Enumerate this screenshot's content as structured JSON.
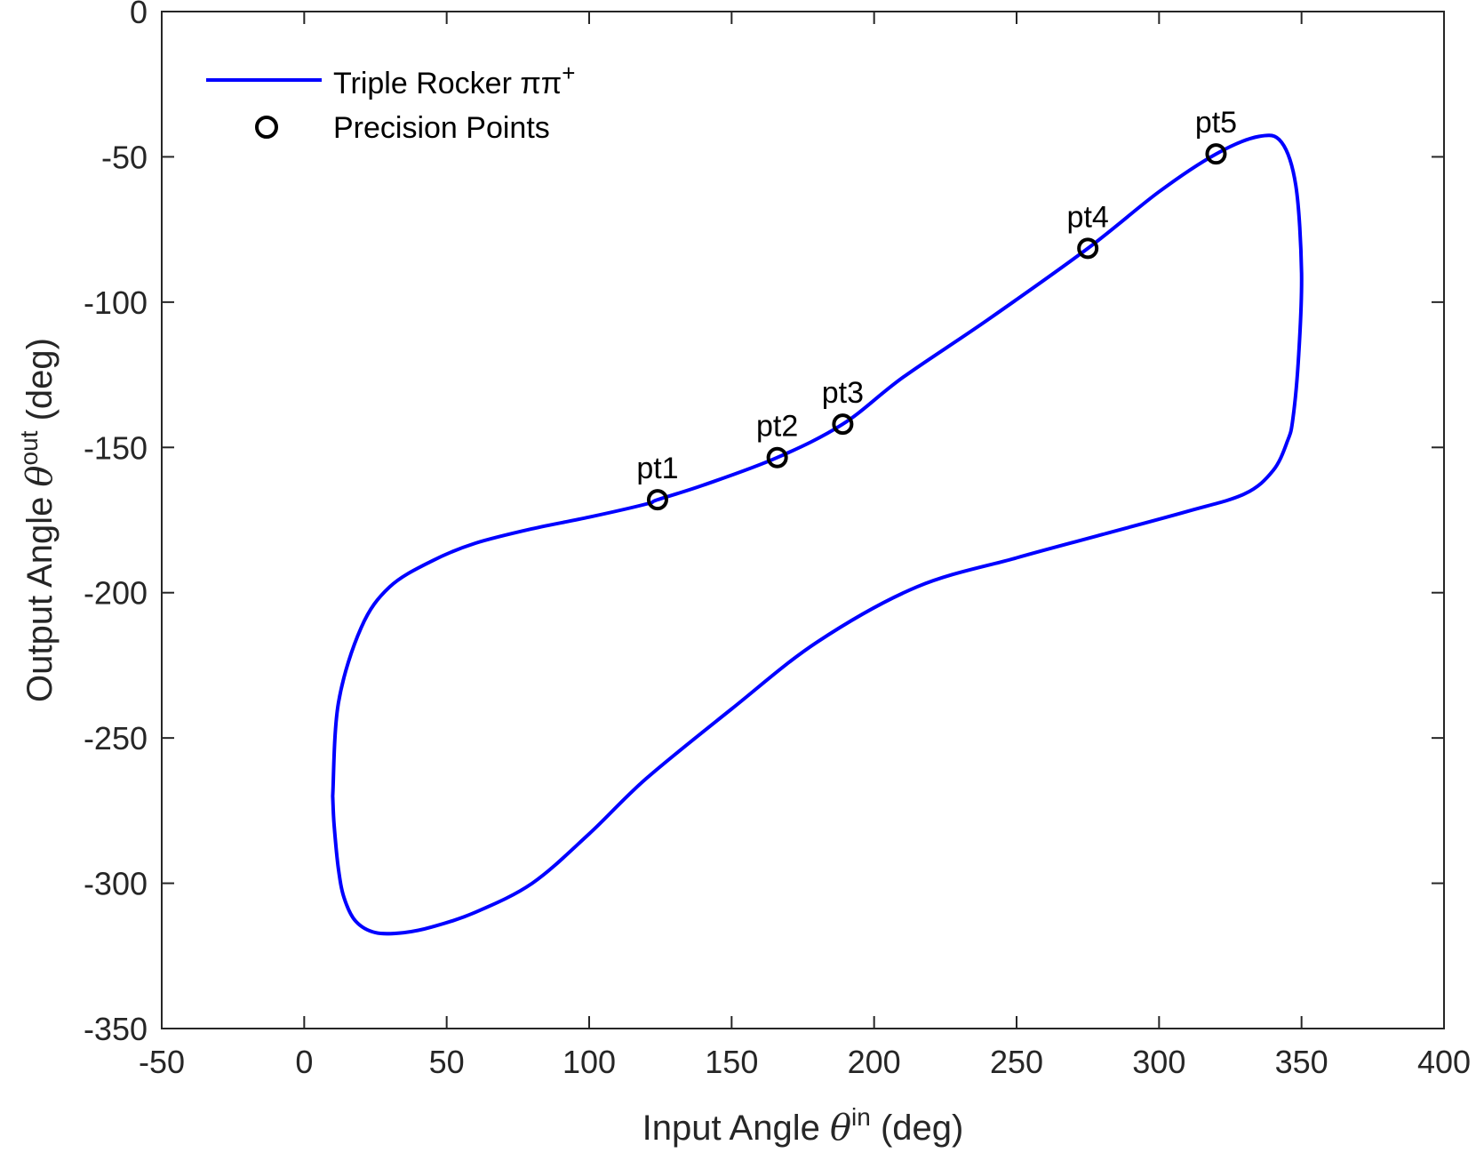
{
  "chart_data": {
    "type": "line",
    "title": "",
    "xlabel": {
      "prefix": "Input Angle ",
      "symbol": "θ",
      "sup": "in",
      "suffix": " (deg)"
    },
    "ylabel": {
      "prefix": "Output Angle ",
      "symbol": "θ",
      "sup": "out",
      "suffix": " (deg)"
    },
    "xlim": [
      -50,
      400
    ],
    "ylim": [
      -350,
      0
    ],
    "xticks": [
      -50,
      0,
      50,
      100,
      150,
      200,
      250,
      300,
      350,
      400
    ],
    "yticks": [
      0,
      -50,
      -100,
      -150,
      -200,
      -250,
      -300,
      -350
    ],
    "grid": false,
    "legend_position": "top-left",
    "series": [
      {
        "name": "Triple Rocker ππ",
        "name_sup": "+",
        "color": "#0000ff",
        "style": "line",
        "x": [
          10,
          12,
          20,
          30,
          45,
          60,
          80,
          100,
          120,
          124,
          140,
          166,
          189,
          210,
          240,
          275,
          300,
          320,
          335,
          343,
          348,
          350,
          349,
          347,
          345,
          340,
          330,
          310,
          280,
          250,
          215,
          180,
          150,
          120,
          100,
          80,
          60,
          45,
          35,
          25,
          18,
          14,
          12,
          10.5,
          10
        ],
        "y": [
          -270,
          -238,
          -212,
          -198,
          -189,
          -183,
          -178,
          -174,
          -169.5,
          -168,
          -163,
          -153.5,
          -142,
          -126,
          -106,
          -81.5,
          -62,
          -49,
          -43,
          -45,
          -60,
          -90,
          -118,
          -140,
          -148,
          -158,
          -166,
          -172,
          -180,
          -188,
          -198,
          -217,
          -240,
          -264,
          -283,
          -300,
          -310,
          -315,
          -317,
          -317,
          -313,
          -305,
          -295,
          -280,
          -270
        ]
      },
      {
        "name": "Precision Points",
        "color": "#000000",
        "style": "marker",
        "marker": "circle",
        "points": [
          {
            "label": "pt1",
            "x": 124,
            "y": -168
          },
          {
            "label": "pt2",
            "x": 166,
            "y": -153.5
          },
          {
            "label": "pt3",
            "x": 189,
            "y": -142
          },
          {
            "label": "pt4",
            "x": 275,
            "y": -81.5
          },
          {
            "label": "pt5",
            "x": 320,
            "y": -49
          }
        ]
      }
    ]
  }
}
